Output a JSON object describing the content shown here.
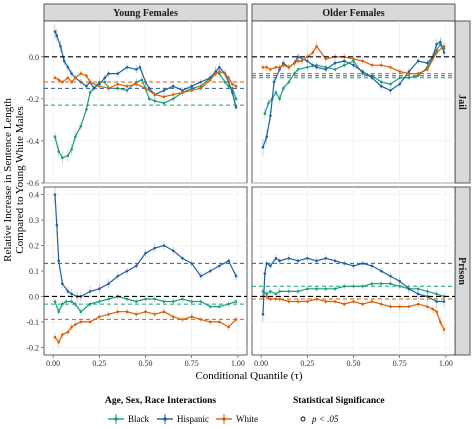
{
  "chart_data": {
    "type": "line",
    "x_label": "Conditional Quantile (τ)",
    "y_label_line1": "Relative Increase in Sentence Length",
    "y_label_line2": "Compared to Young White Males",
    "x_range": [
      0,
      1
    ],
    "x_ticks": [
      0.0,
      0.25,
      0.5,
      0.75,
      1.0
    ],
    "x_tick_labels": [
      "0.00",
      "0.25",
      "0.50",
      "0.75",
      "1.00"
    ],
    "col_labels": [
      "Young Females",
      "Older Females"
    ],
    "row_labels": [
      "Jail",
      "Prison"
    ],
    "rows": [
      {
        "key": "Jail",
        "y_range": [
          -0.6,
          0.17
        ],
        "y_ticks": [
          0.0,
          -0.2,
          -0.4,
          -0.6
        ],
        "y_tick_labels": [
          "0.0",
          "-0.2",
          "-0.4",
          "-0.6"
        ]
      },
      {
        "key": "Prison",
        "y_range": [
          -0.23,
          0.43
        ],
        "y_ticks": [
          0.4,
          0.3,
          0.2,
          0.1,
          0.0,
          -0.1,
          -0.2
        ],
        "y_tick_labels": [
          "0.4",
          "0.3",
          "0.2",
          "0.1",
          "0.0",
          "-0.1",
          "-0.2"
        ]
      }
    ],
    "reference_line": {
      "y": 0,
      "style": "dashed",
      "color": "#000000"
    },
    "colors": {
      "Black": "#1b9e77",
      "Hispanic": "#1f5fa3",
      "White": "#d95f02"
    },
    "panels": [
      {
        "row": "Jail",
        "col": "Young Females",
        "series": [
          {
            "name": "Black",
            "mean": -0.23,
            "x": [
              0.01,
              0.03,
              0.05,
              0.08,
              0.1,
              0.12,
              0.15,
              0.18,
              0.2,
              0.22,
              0.25,
              0.28,
              0.3,
              0.35,
              0.4,
              0.45,
              0.48,
              0.5,
              0.52,
              0.55,
              0.6,
              0.65,
              0.7,
              0.75,
              0.8,
              0.85,
              0.88,
              0.9,
              0.93,
              0.95,
              0.97,
              0.99
            ],
            "y": [
              -0.38,
              -0.45,
              -0.48,
              -0.47,
              -0.44,
              -0.38,
              -0.33,
              -0.25,
              -0.17,
              -0.15,
              -0.12,
              -0.12,
              -0.15,
              -0.15,
              -0.16,
              -0.12,
              -0.11,
              -0.15,
              -0.2,
              -0.21,
              -0.22,
              -0.2,
              -0.17,
              -0.15,
              -0.14,
              -0.1,
              -0.07,
              -0.08,
              -0.12,
              -0.14,
              -0.15,
              -0.2
            ]
          },
          {
            "name": "Hispanic",
            "mean": -0.15,
            "x": [
              0.01,
              0.02,
              0.04,
              0.06,
              0.08,
              0.1,
              0.12,
              0.15,
              0.18,
              0.2,
              0.22,
              0.25,
              0.28,
              0.3,
              0.35,
              0.4,
              0.45,
              0.47,
              0.5,
              0.52,
              0.55,
              0.6,
              0.65,
              0.7,
              0.75,
              0.8,
              0.85,
              0.88,
              0.9,
              0.93,
              0.95,
              0.97,
              0.99
            ],
            "y": [
              0.12,
              0.1,
              0.05,
              -0.02,
              -0.05,
              -0.08,
              -0.1,
              -0.12,
              -0.14,
              -0.12,
              -0.15,
              -0.13,
              -0.1,
              -0.08,
              -0.08,
              -0.05,
              -0.06,
              -0.05,
              -0.12,
              -0.15,
              -0.18,
              -0.16,
              -0.14,
              -0.16,
              -0.14,
              -0.12,
              -0.1,
              -0.07,
              -0.05,
              -0.08,
              -0.12,
              -0.17,
              -0.24
            ]
          },
          {
            "name": "White",
            "mean": -0.12,
            "x": [
              0.01,
              0.03,
              0.05,
              0.08,
              0.1,
              0.12,
              0.15,
              0.18,
              0.2,
              0.25,
              0.3,
              0.35,
              0.4,
              0.45,
              0.5,
              0.55,
              0.6,
              0.65,
              0.7,
              0.75,
              0.8,
              0.85,
              0.88,
              0.9,
              0.93,
              0.95,
              0.97,
              0.99
            ],
            "y": [
              -0.1,
              -0.11,
              -0.12,
              -0.1,
              -0.12,
              -0.1,
              -0.08,
              -0.09,
              -0.12,
              -0.14,
              -0.15,
              -0.13,
              -0.14,
              -0.13,
              -0.15,
              -0.18,
              -0.19,
              -0.18,
              -0.17,
              -0.16,
              -0.15,
              -0.11,
              -0.08,
              -0.07,
              -0.08,
              -0.1,
              -0.13,
              -0.14
            ]
          }
        ]
      },
      {
        "row": "Jail",
        "col": "Older Females",
        "series": [
          {
            "name": "Black",
            "mean": -0.1,
            "x": [
              0.02,
              0.04,
              0.06,
              0.08,
              0.1,
              0.12,
              0.15,
              0.18,
              0.2,
              0.25,
              0.3,
              0.35,
              0.4,
              0.45,
              0.5,
              0.55,
              0.6,
              0.65,
              0.7,
              0.75,
              0.8,
              0.85,
              0.9,
              0.93,
              0.95,
              0.97,
              0.99
            ],
            "y": [
              -0.27,
              -0.22,
              -0.2,
              -0.17,
              -0.2,
              -0.15,
              -0.12,
              -0.08,
              -0.06,
              -0.05,
              -0.04,
              -0.05,
              -0.06,
              -0.04,
              -0.02,
              -0.08,
              -0.09,
              -0.12,
              -0.13,
              -0.1,
              -0.1,
              -0.09,
              -0.05,
              0.0,
              0.03,
              0.06,
              0.04
            ]
          },
          {
            "name": "Hispanic",
            "mean": -0.09,
            "x": [
              0.01,
              0.03,
              0.05,
              0.07,
              0.1,
              0.12,
              0.15,
              0.18,
              0.2,
              0.25,
              0.28,
              0.3,
              0.35,
              0.4,
              0.45,
              0.5,
              0.55,
              0.6,
              0.65,
              0.7,
              0.75,
              0.8,
              0.85,
              0.9,
              0.93,
              0.95,
              0.97,
              0.99
            ],
            "y": [
              -0.43,
              -0.38,
              -0.28,
              -0.12,
              -0.06,
              -0.03,
              -0.05,
              -0.03,
              0.0,
              -0.02,
              -0.04,
              -0.05,
              -0.06,
              -0.03,
              -0.02,
              -0.04,
              -0.07,
              -0.1,
              -0.14,
              -0.16,
              -0.13,
              -0.07,
              -0.02,
              -0.03,
              0.0,
              0.06,
              0.07,
              0.02
            ]
          },
          {
            "name": "White",
            "mean": -0.08,
            "x": [
              0.01,
              0.03,
              0.05,
              0.08,
              0.1,
              0.12,
              0.15,
              0.18,
              0.2,
              0.22,
              0.25,
              0.28,
              0.3,
              0.35,
              0.4,
              0.45,
              0.5,
              0.55,
              0.6,
              0.65,
              0.7,
              0.75,
              0.8,
              0.85,
              0.9,
              0.95,
              0.99
            ],
            "y": [
              -0.05,
              -0.05,
              -0.06,
              -0.05,
              -0.05,
              -0.04,
              -0.05,
              -0.03,
              -0.02,
              -0.02,
              0.0,
              0.02,
              0.05,
              -0.01,
              0.0,
              0.0,
              -0.01,
              -0.02,
              -0.04,
              -0.04,
              -0.05,
              -0.07,
              -0.08,
              -0.08,
              -0.06,
              0.02,
              0.05
            ]
          }
        ]
      },
      {
        "row": "Prison",
        "col": "Young Females",
        "series": [
          {
            "name": "Black",
            "mean": -0.03,
            "x": [
              0.01,
              0.03,
              0.05,
              0.07,
              0.1,
              0.12,
              0.15,
              0.2,
              0.25,
              0.3,
              0.35,
              0.4,
              0.45,
              0.5,
              0.55,
              0.6,
              0.65,
              0.7,
              0.75,
              0.8,
              0.85,
              0.9,
              0.95,
              0.99
            ],
            "y": [
              -0.02,
              -0.06,
              -0.03,
              -0.02,
              -0.02,
              -0.03,
              -0.06,
              -0.03,
              -0.02,
              -0.01,
              0.0,
              -0.01,
              -0.02,
              -0.01,
              -0.01,
              -0.02,
              -0.02,
              -0.01,
              -0.02,
              -0.02,
              -0.04,
              -0.04,
              -0.03,
              -0.02
            ]
          },
          {
            "name": "Hispanic",
            "mean": 0.13,
            "x": [
              0.01,
              0.02,
              0.03,
              0.05,
              0.08,
              0.1,
              0.13,
              0.15,
              0.2,
              0.25,
              0.3,
              0.35,
              0.4,
              0.45,
              0.5,
              0.55,
              0.6,
              0.65,
              0.7,
              0.75,
              0.8,
              0.85,
              0.9,
              0.95,
              0.99
            ],
            "y": [
              0.4,
              0.28,
              0.14,
              0.05,
              0.02,
              0.01,
              0.0,
              0.0,
              0.02,
              0.03,
              0.05,
              0.08,
              0.1,
              0.12,
              0.17,
              0.19,
              0.2,
              0.18,
              0.15,
              0.13,
              0.08,
              0.1,
              0.12,
              0.14,
              0.08
            ]
          },
          {
            "name": "White",
            "mean": -0.09,
            "x": [
              0.01,
              0.03,
              0.05,
              0.08,
              0.1,
              0.12,
              0.15,
              0.2,
              0.25,
              0.3,
              0.35,
              0.4,
              0.45,
              0.5,
              0.55,
              0.6,
              0.65,
              0.7,
              0.75,
              0.8,
              0.85,
              0.9,
              0.95,
              0.99
            ],
            "y": [
              -0.16,
              -0.18,
              -0.15,
              -0.14,
              -0.12,
              -0.11,
              -0.1,
              -0.1,
              -0.08,
              -0.07,
              -0.06,
              -0.06,
              -0.07,
              -0.06,
              -0.07,
              -0.06,
              -0.08,
              -0.09,
              -0.08,
              -0.09,
              -0.1,
              -0.1,
              -0.12,
              -0.09
            ]
          }
        ]
      },
      {
        "row": "Prison",
        "col": "Older Females",
        "series": [
          {
            "name": "Black",
            "mean": 0.04,
            "x": [
              0.01,
              0.03,
              0.05,
              0.08,
              0.1,
              0.15,
              0.2,
              0.25,
              0.3,
              0.35,
              0.4,
              0.45,
              0.5,
              0.55,
              0.6,
              0.65,
              0.7,
              0.75,
              0.8,
              0.85,
              0.9,
              0.95,
              0.99
            ],
            "y": [
              0.02,
              0.01,
              0.02,
              0.01,
              0.02,
              0.02,
              0.02,
              0.03,
              0.03,
              0.03,
              0.03,
              0.04,
              0.04,
              0.04,
              0.05,
              0.05,
              0.05,
              0.04,
              0.03,
              0.03,
              0.02,
              0.01,
              0.0
            ]
          },
          {
            "name": "Hispanic",
            "mean": 0.13,
            "x": [
              0.01,
              0.02,
              0.03,
              0.05,
              0.08,
              0.1,
              0.15,
              0.2,
              0.25,
              0.3,
              0.35,
              0.4,
              0.45,
              0.5,
              0.55,
              0.6,
              0.65,
              0.7,
              0.75,
              0.8,
              0.85,
              0.9,
              0.95,
              0.99
            ],
            "y": [
              -0.07,
              0.09,
              0.13,
              0.12,
              0.15,
              0.14,
              0.15,
              0.14,
              0.15,
              0.14,
              0.15,
              0.14,
              0.13,
              0.12,
              0.13,
              0.12,
              0.1,
              0.08,
              0.06,
              0.03,
              0.01,
              0.0,
              -0.02,
              -0.02
            ]
          },
          {
            "name": "White",
            "mean": -0.01,
            "x": [
              0.01,
              0.03,
              0.05,
              0.08,
              0.1,
              0.15,
              0.2,
              0.25,
              0.3,
              0.35,
              0.4,
              0.45,
              0.5,
              0.55,
              0.6,
              0.65,
              0.7,
              0.75,
              0.8,
              0.85,
              0.9,
              0.93,
              0.95,
              0.97,
              0.99
            ],
            "y": [
              0.0,
              0.0,
              -0.01,
              -0.01,
              -0.01,
              -0.02,
              -0.02,
              -0.02,
              -0.01,
              -0.02,
              -0.02,
              -0.03,
              -0.02,
              -0.03,
              -0.02,
              -0.03,
              -0.04,
              -0.04,
              -0.04,
              -0.03,
              -0.04,
              -0.05,
              -0.06,
              -0.1,
              -0.13
            ]
          }
        ]
      }
    ]
  },
  "legend": {
    "group_title": "Age, Sex, Race Interactions",
    "items": [
      "Black",
      "Hispanic",
      "White"
    ],
    "sig_title": "Statistical Significance",
    "sig_label": "p < .05"
  }
}
